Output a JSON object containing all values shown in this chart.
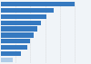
{
  "values": [
    100,
    72,
    62,
    55,
    50,
    45,
    40,
    36,
    28,
    16
  ],
  "bar_color": "#3579c0",
  "last_bar_color": "#b0cde8",
  "background_color": "#f0f4f8",
  "bar_height": 0.75,
  "xlim": [
    0,
    112
  ]
}
